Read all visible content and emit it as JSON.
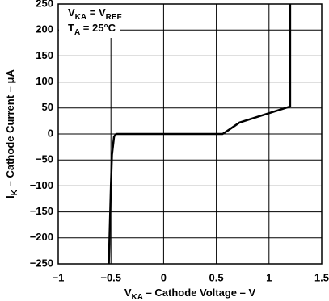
{
  "chart_data": {
    "type": "line",
    "annotation": [
      [
        "V",
        "KA",
        " = V",
        "REF"
      ],
      [
        "T",
        "A",
        " = 25°C"
      ]
    ],
    "x_label": [
      "V",
      "KA",
      " – Cathode Voltage – V"
    ],
    "y_label": [
      "I",
      "K",
      " – Cathode Current – μA"
    ],
    "x": [
      -0.52,
      -0.5,
      -0.49,
      -0.47,
      -0.45,
      0.56,
      0.62,
      0.72,
      1.2,
      1.2
    ],
    "values": [
      -250,
      -100,
      -40,
      -5,
      0,
      0,
      8,
      22,
      53,
      250
    ],
    "color": "#000000",
    "xlim": [
      -1,
      1.5
    ],
    "xticks": [
      {
        "value": -1,
        "label": "−1"
      },
      {
        "value": -0.5,
        "label": "−0.5"
      },
      0,
      0.5,
      1,
      1.5
    ],
    "ylim": [
      -250,
      250
    ],
    "yticks": [
      {
        "value": -250,
        "label": "−250"
      },
      {
        "value": -200,
        "label": "−200"
      },
      {
        "value": -150,
        "label": "−150"
      },
      {
        "value": -100,
        "label": "−100"
      },
      {
        "value": -50,
        "label": "−50"
      },
      0,
      50,
      100,
      150,
      200,
      250
    ],
    "grid": true
  }
}
